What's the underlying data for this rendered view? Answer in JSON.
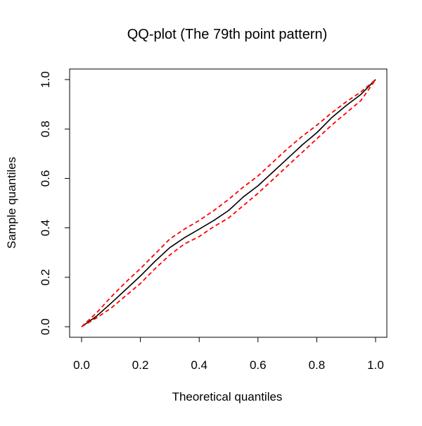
{
  "chart_data": {
    "type": "line",
    "title": "QQ-plot (The 79th point pattern)",
    "xlabel": "Theoretical quantiles",
    "ylabel": "Sample quantiles",
    "xlim": [
      0,
      1
    ],
    "ylim": [
      0,
      1
    ],
    "xticks": [
      "0.0",
      "0.2",
      "0.4",
      "0.6",
      "0.8",
      "1.0"
    ],
    "yticks": [
      "0.0",
      "0.2",
      "0.4",
      "0.6",
      "0.8",
      "1.0"
    ],
    "grid": false,
    "legend": "none",
    "series": [
      {
        "role": "sample",
        "color": "#000000",
        "dash": "solid",
        "x": [
          0.0,
          0.05,
          0.1,
          0.15,
          0.2,
          0.25,
          0.3,
          0.35,
          0.4,
          0.45,
          0.5,
          0.55,
          0.6,
          0.65,
          0.7,
          0.75,
          0.8,
          0.85,
          0.9,
          0.95,
          1.0
        ],
        "values": [
          0.0,
          0.042,
          0.095,
          0.15,
          0.205,
          0.265,
          0.32,
          0.36,
          0.395,
          0.43,
          0.47,
          0.525,
          0.57,
          0.625,
          0.68,
          0.735,
          0.785,
          0.845,
          0.895,
          0.94,
          1.0
        ]
      },
      {
        "role": "upper-envelope",
        "color": "#ff0000",
        "dash": "dashed",
        "x": [
          0.0,
          0.05,
          0.1,
          0.15,
          0.2,
          0.25,
          0.3,
          0.35,
          0.4,
          0.45,
          0.5,
          0.55,
          0.6,
          0.65,
          0.7,
          0.75,
          0.8,
          0.85,
          0.9,
          0.95,
          1.0
        ],
        "values": [
          0.0,
          0.055,
          0.12,
          0.18,
          0.235,
          0.295,
          0.355,
          0.395,
          0.43,
          0.47,
          0.515,
          0.565,
          0.61,
          0.665,
          0.72,
          0.77,
          0.815,
          0.865,
          0.91,
          0.95,
          1.0
        ]
      },
      {
        "role": "lower-envelope",
        "color": "#ff0000",
        "dash": "dashed",
        "x": [
          0.0,
          0.05,
          0.1,
          0.15,
          0.2,
          0.25,
          0.3,
          0.35,
          0.4,
          0.45,
          0.5,
          0.55,
          0.6,
          0.65,
          0.7,
          0.75,
          0.8,
          0.85,
          0.9,
          0.95,
          1.0
        ],
        "values": [
          0.0,
          0.035,
          0.075,
          0.125,
          0.175,
          0.235,
          0.29,
          0.335,
          0.365,
          0.405,
          0.44,
          0.49,
          0.54,
          0.595,
          0.65,
          0.705,
          0.76,
          0.815,
          0.865,
          0.915,
          1.0
        ]
      }
    ]
  }
}
